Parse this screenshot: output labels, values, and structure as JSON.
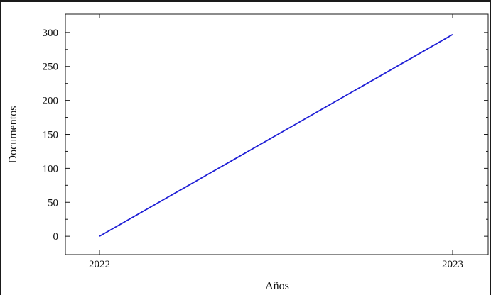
{
  "chart_data": {
    "type": "line",
    "x": [
      "2022",
      "2023"
    ],
    "series": [
      {
        "values": [
          0,
          297
        ],
        "color": "#1f1fd6"
      }
    ],
    "xlabel": "Años",
    "ylabel": "Documentos",
    "ylim": [
      -27,
      327
    ],
    "yticks": [
      0,
      50,
      100,
      150,
      200,
      250,
      300
    ],
    "xticks": [
      "2022",
      "2023"
    ],
    "grid": false
  }
}
